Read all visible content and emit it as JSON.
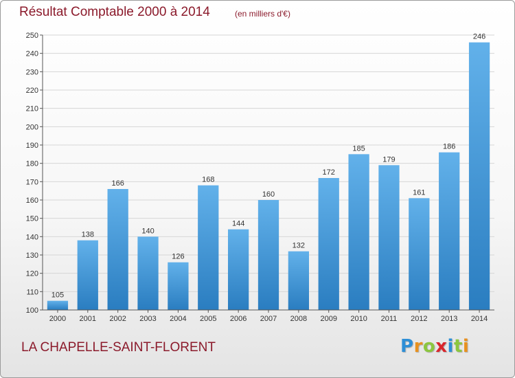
{
  "header": {
    "title": "Résultat Comptable 2000 à 2014",
    "subtitle": "(en milliers d'€)"
  },
  "footer": {
    "location": "LA CHAPELLE-SAINT-FLORENT",
    "logo_letters": [
      "P",
      "r",
      "o",
      "x",
      "i",
      "t",
      "i"
    ],
    "logo_colors": [
      "#2e8fd6",
      "#e8911f",
      "#8cc63f",
      "#d9262c",
      "#2e8fd6",
      "#8cc63f",
      "#e8911f"
    ]
  },
  "colors": {
    "bar_light": "#62b1ea",
    "bar_dark": "#2a7dc0",
    "grid": "#d6d6d6",
    "axis": "#555555"
  },
  "chart_data": {
    "type": "bar",
    "title": "Résultat Comptable 2000 à 2014",
    "subtitle": "(en milliers d'€)",
    "categories": [
      "2000",
      "2001",
      "2002",
      "2003",
      "2004",
      "2005",
      "2006",
      "2007",
      "2008",
      "2009",
      "2010",
      "2011",
      "2012",
      "2013",
      "2014"
    ],
    "values": [
      105,
      138,
      166,
      140,
      126,
      168,
      144,
      160,
      132,
      172,
      185,
      179,
      161,
      186,
      246
    ],
    "ylim": [
      100,
      250
    ],
    "yticks": [
      100,
      110,
      120,
      130,
      140,
      150,
      160,
      170,
      180,
      190,
      200,
      210,
      220,
      230,
      240,
      250
    ],
    "grid": true,
    "xlabel": "",
    "ylabel": ""
  }
}
